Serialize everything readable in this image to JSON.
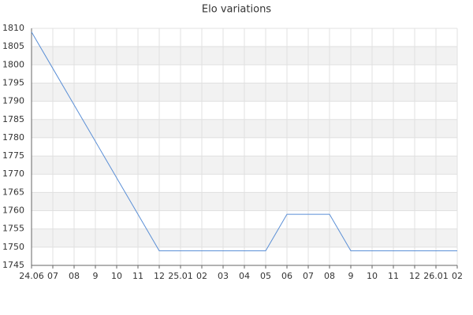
{
  "chart_data": {
    "type": "line",
    "title": "Elo variations",
    "categories": [
      "24.06",
      "07",
      "08",
      "9",
      "10",
      "11",
      "12",
      "25.01",
      "02",
      "03",
      "04",
      "05",
      "06",
      "07",
      "08",
      "9",
      "10",
      "11",
      "12",
      "26.01",
      "02"
    ],
    "values": [
      1809,
      1799,
      1789,
      1779,
      1769,
      1759,
      1749,
      1749,
      1749,
      1749,
      1749,
      1749,
      1759,
      1759,
      1759,
      1749,
      1749,
      1749,
      1749,
      1749,
      1749
    ],
    "color": "#5b8fd6",
    "ylim": [
      1745,
      1810
    ],
    "yticks": [
      1745,
      1750,
      1755,
      1760,
      1765,
      1770,
      1775,
      1780,
      1785,
      1790,
      1795,
      1800,
      1805,
      1810
    ],
    "grid": true
  }
}
